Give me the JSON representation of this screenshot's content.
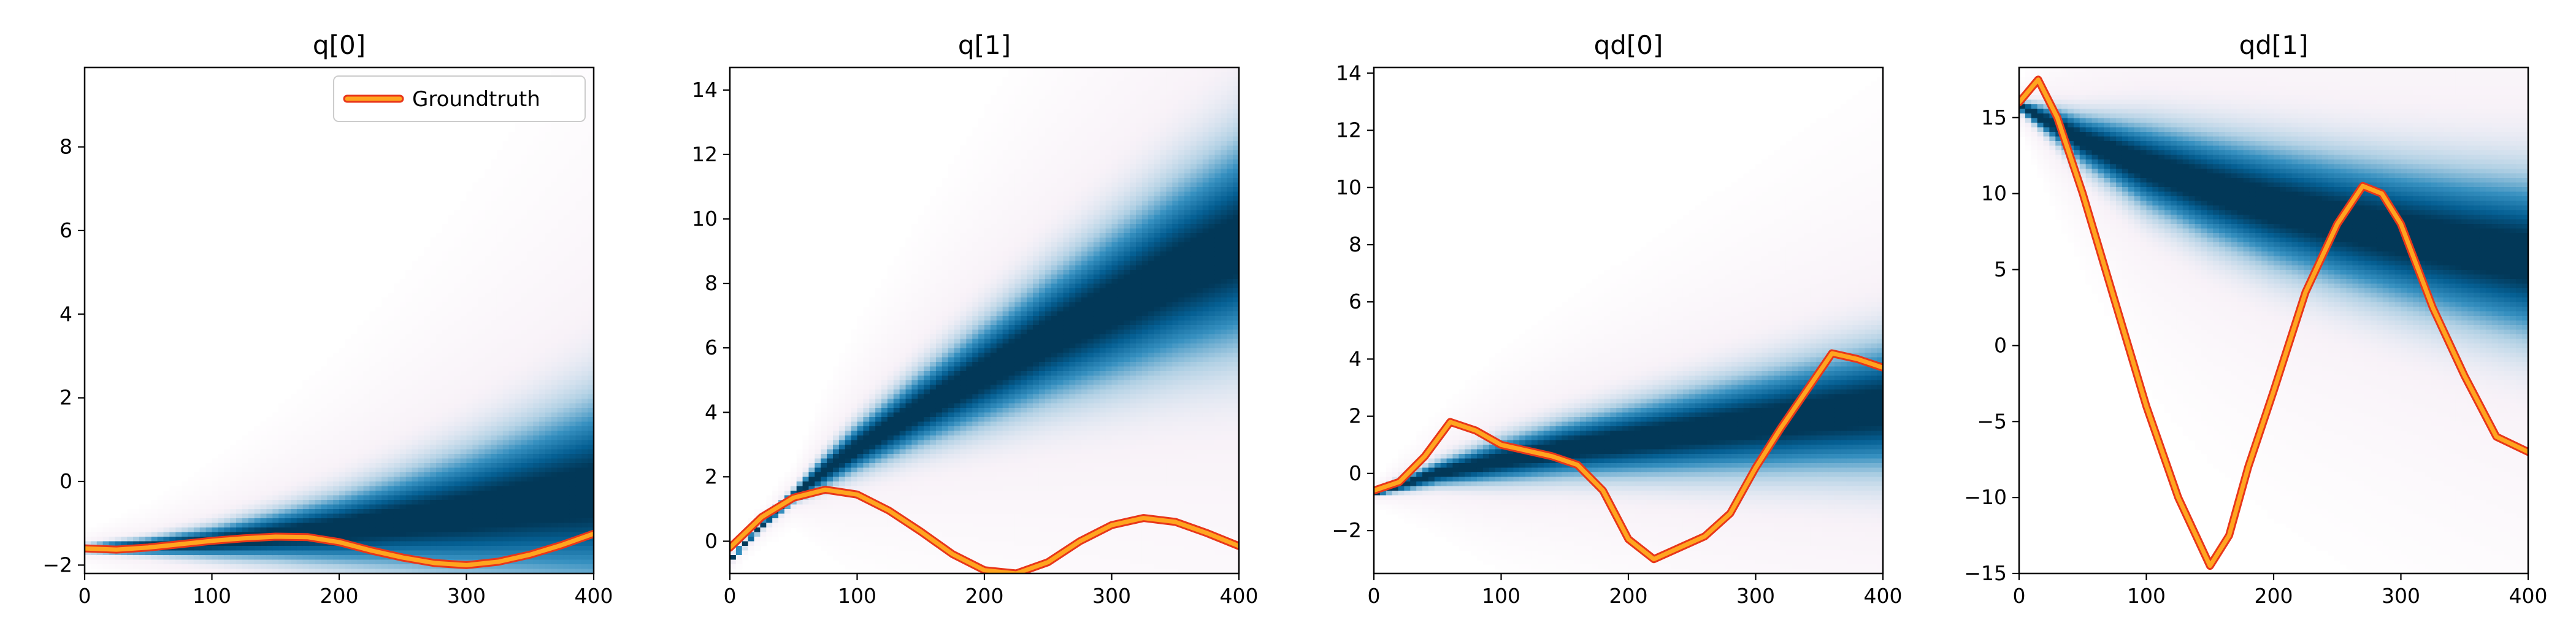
{
  "chart_data": [
    {
      "type": "heatmap",
      "title": "q[0]",
      "xlim": [
        0,
        400
      ],
      "ylim": [
        -2.2,
        9.9
      ],
      "xticks": [
        0,
        100,
        200,
        300,
        400
      ],
      "yticks": [
        -2,
        0,
        2,
        4,
        6,
        8
      ],
      "grid": false,
      "legend": {
        "placement": "top-right",
        "entries": [
          "Groundtruth"
        ]
      },
      "density": {
        "x": [
          0,
          50,
          100,
          150,
          200,
          250,
          300,
          350,
          400
        ],
        "center": [
          -1.6,
          -1.55,
          -1.45,
          -1.3,
          -1.15,
          -0.95,
          -0.75,
          -0.5,
          -0.25
        ],
        "spread": [
          0.05,
          0.12,
          0.22,
          0.35,
          0.5,
          0.68,
          0.88,
          1.1,
          1.35
        ]
      },
      "series": [
        {
          "name": "Groundtruth",
          "x": [
            0,
            25,
            50,
            75,
            100,
            125,
            150,
            175,
            200,
            225,
            250,
            275,
            300,
            325,
            350,
            375,
            400
          ],
          "y": [
            -1.6,
            -1.63,
            -1.58,
            -1.5,
            -1.42,
            -1.36,
            -1.32,
            -1.33,
            -1.45,
            -1.65,
            -1.82,
            -1.95,
            -2.0,
            -1.92,
            -1.75,
            -1.52,
            -1.25
          ]
        }
      ]
    },
    {
      "type": "heatmap",
      "title": "q[1]",
      "xlim": [
        0,
        400
      ],
      "ylim": [
        -1.0,
        14.7
      ],
      "xticks": [
        0,
        100,
        200,
        300,
        400
      ],
      "yticks": [
        0,
        2,
        4,
        6,
        8,
        10,
        12,
        14
      ],
      "grid": false,
      "density": {
        "x": [
          0,
          25,
          50,
          75,
          100,
          150,
          200,
          250,
          300,
          350,
          400
        ],
        "center": [
          -0.6,
          0.5,
          1.4,
          2.2,
          2.9,
          4.1,
          5.2,
          6.3,
          7.3,
          8.3,
          9.2
        ],
        "spread": [
          0.05,
          0.08,
          0.12,
          0.3,
          0.45,
          0.7,
          0.95,
          1.2,
          1.45,
          1.7,
          1.95
        ]
      },
      "series": [
        {
          "name": "",
          "x": [
            0,
            25,
            50,
            75,
            100,
            125,
            150,
            175,
            200,
            225,
            250,
            275,
            300,
            325,
            350,
            375,
            400
          ],
          "y": [
            -0.2,
            0.75,
            1.35,
            1.6,
            1.45,
            0.95,
            0.3,
            -0.4,
            -0.9,
            -1.0,
            -0.65,
            0.0,
            0.5,
            0.72,
            0.6,
            0.25,
            -0.15
          ]
        }
      ]
    },
    {
      "type": "heatmap",
      "title": "qd[0]",
      "xlim": [
        0,
        400
      ],
      "ylim": [
        -3.5,
        14.2
      ],
      "xticks": [
        0,
        100,
        200,
        300,
        400
      ],
      "yticks": [
        -2,
        0,
        2,
        4,
        6,
        8,
        10,
        12,
        14
      ],
      "grid": false,
      "density": {
        "x": [
          0,
          50,
          100,
          150,
          200,
          250,
          300,
          350,
          400
        ],
        "center": [
          -0.7,
          0.0,
          0.45,
          0.85,
          1.15,
          1.45,
          1.75,
          2.05,
          2.3
        ],
        "spread": [
          0.05,
          0.25,
          0.45,
          0.6,
          0.75,
          0.9,
          1.05,
          1.2,
          1.35
        ]
      },
      "series": [
        {
          "name": "",
          "x": [
            0,
            20,
            40,
            60,
            80,
            100,
            120,
            140,
            160,
            180,
            200,
            220,
            240,
            260,
            280,
            300,
            320,
            340,
            360,
            380,
            400
          ],
          "y": [
            -0.6,
            -0.3,
            0.6,
            1.8,
            1.5,
            1.0,
            0.8,
            0.6,
            0.3,
            -0.6,
            -2.3,
            -3.0,
            -2.6,
            -2.2,
            -1.4,
            0.2,
            1.6,
            2.9,
            4.2,
            4.0,
            3.7
          ]
        }
      ]
    },
    {
      "type": "heatmap",
      "title": "qd[1]",
      "xlim": [
        0,
        400
      ],
      "ylim": [
        -15,
        18.3
      ],
      "xticks": [
        0,
        100,
        200,
        300,
        400
      ],
      "yticks": [
        -15,
        -10,
        -5,
        0,
        5,
        10,
        15
      ],
      "grid": false,
      "density": {
        "x": [
          0,
          50,
          100,
          150,
          200,
          250,
          300,
          350,
          400
        ],
        "center": [
          15.8,
          13.5,
          11.8,
          10.4,
          9.2,
          8.2,
          7.3,
          6.5,
          5.8
        ],
        "spread": [
          0.2,
          1.0,
          1.7,
          2.1,
          2.4,
          2.6,
          2.8,
          3.0,
          3.2
        ]
      },
      "series": [
        {
          "name": "",
          "x": [
            0,
            15,
            30,
            50,
            75,
            100,
            125,
            150,
            165,
            180,
            200,
            225,
            250,
            270,
            285,
            300,
            325,
            350,
            375,
            400
          ],
          "y": [
            16.0,
            17.5,
            15.0,
            10.0,
            3.0,
            -4.0,
            -10.0,
            -14.5,
            -12.5,
            -8.0,
            -3.0,
            3.5,
            8.0,
            10.5,
            10.0,
            8.0,
            2.5,
            -2.0,
            -6.0,
            -7.0
          ]
        }
      ]
    }
  ]
}
